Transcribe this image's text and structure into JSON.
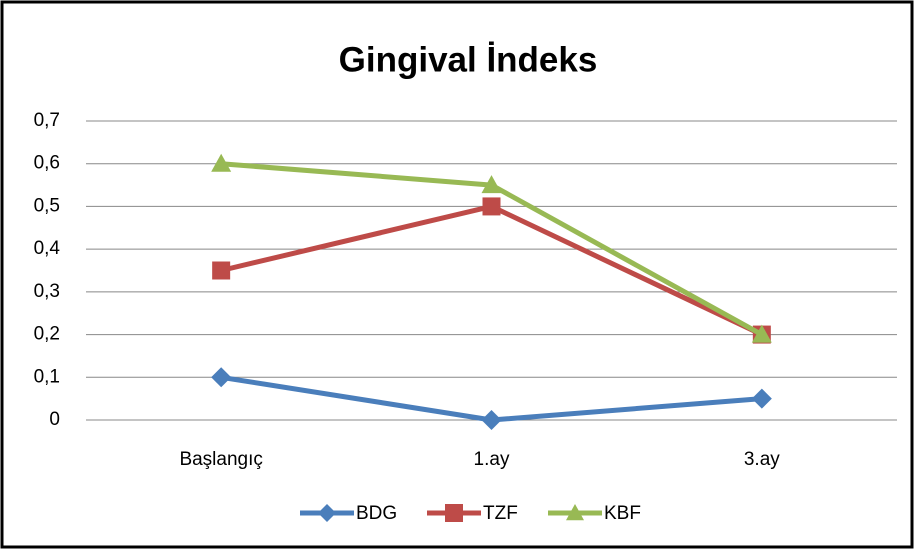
{
  "chart_data": {
    "type": "line",
    "title": "Gingival İndeks",
    "categories": [
      "Başlangıç",
      "1.ay",
      "3.ay"
    ],
    "series": [
      {
        "name": "BDG",
        "color": "#4a7ebb",
        "marker": "diamond",
        "values": [
          0.1,
          0,
          0.05
        ]
      },
      {
        "name": "TZF",
        "color": "#be4b48",
        "marker": "square",
        "values": [
          0.35,
          0.5,
          0.2
        ]
      },
      {
        "name": "KBF",
        "color": "#98b954",
        "marker": "triangle",
        "values": [
          0.6,
          0.55,
          0.2
        ]
      }
    ],
    "ylim": [
      0,
      0.7
    ],
    "yticks": [
      0,
      {
        "value": 0.1,
        "label": "0,1"
      },
      {
        "value": 0.2,
        "label": "0,2"
      },
      {
        "value": 0.3,
        "label": "0,3"
      },
      {
        "value": 0.4,
        "label": "0,4"
      },
      {
        "value": 0.5,
        "label": "0,5"
      },
      {
        "value": 0.6,
        "label": "0,6"
      },
      {
        "value": 0.7,
        "label": "0,7"
      }
    ],
    "grid": true,
    "legend": "bottom"
  }
}
